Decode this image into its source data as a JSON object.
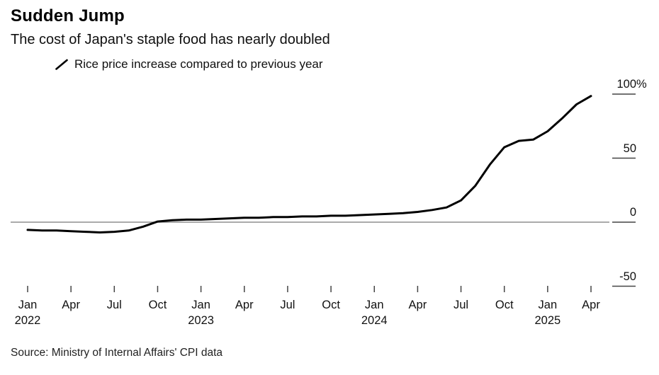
{
  "header": {
    "title": "Sudden Jump",
    "subtitle": "The cost of Japan's staple food has nearly doubled"
  },
  "legend": {
    "marker": "line-slash-icon",
    "label": "Rice price increase compared to previous year"
  },
  "footer": {
    "source": "Source: Ministry of Internal Affairs' CPI data"
  },
  "chart_data": {
    "type": "line",
    "title": "Sudden Jump",
    "subtitle": "The cost of Japan's staple food has nearly doubled",
    "unit": "% change vs previous year",
    "frequency": "monthly",
    "x_start": "Jan 2022",
    "x_end": "Apr 2025",
    "ylim": [
      -50,
      100
    ],
    "grid": "zero-line-only",
    "legend_position": "top-left",
    "y_axis": {
      "side": "right",
      "ticks": [
        {
          "value": 100,
          "label": "100",
          "suffix": "%"
        },
        {
          "value": 50,
          "label": "50"
        },
        {
          "value": 0,
          "label": "0"
        },
        {
          "value": -50,
          "label": "-50"
        }
      ],
      "zero_line": true
    },
    "x_axis": {
      "ticks": [
        {
          "month_index": 0,
          "label": "Jan",
          "year": "2022"
        },
        {
          "month_index": 3,
          "label": "Apr"
        },
        {
          "month_index": 6,
          "label": "Jul"
        },
        {
          "month_index": 9,
          "label": "Oct"
        },
        {
          "month_index": 12,
          "label": "Jan",
          "year": "2023"
        },
        {
          "month_index": 15,
          "label": "Apr"
        },
        {
          "month_index": 18,
          "label": "Jul"
        },
        {
          "month_index": 21,
          "label": "Oct"
        },
        {
          "month_index": 24,
          "label": "Jan",
          "year": "2024"
        },
        {
          "month_index": 27,
          "label": "Apr"
        },
        {
          "month_index": 30,
          "label": "Jul"
        },
        {
          "month_index": 33,
          "label": "Oct"
        },
        {
          "month_index": 36,
          "label": "Jan",
          "year": "2025"
        },
        {
          "month_index": 39,
          "label": "Apr"
        }
      ]
    },
    "series": [
      {
        "name": "Rice price increase compared to previous year",
        "color": "#000000",
        "start": "Jan 2022",
        "values": [
          -6,
          -6.5,
          -6.5,
          -7,
          -7.5,
          -8,
          -7.5,
          -6.5,
          -3.5,
          0.5,
          1.5,
          2,
          2,
          2.5,
          3,
          3.5,
          3.5,
          4,
          4,
          4.5,
          4.5,
          5,
          5,
          5.5,
          6,
          6.5,
          7,
          8,
          9.5,
          11.5,
          17,
          28.5,
          45,
          58.5,
          63.5,
          64.5,
          71,
          81,
          92,
          98.5
        ]
      }
    ],
    "colors": {
      "series": "#000000",
      "zero_line": "#8f8f8f",
      "axis_tick": "#444444",
      "text": "#111111",
      "background": "#ffffff"
    }
  }
}
